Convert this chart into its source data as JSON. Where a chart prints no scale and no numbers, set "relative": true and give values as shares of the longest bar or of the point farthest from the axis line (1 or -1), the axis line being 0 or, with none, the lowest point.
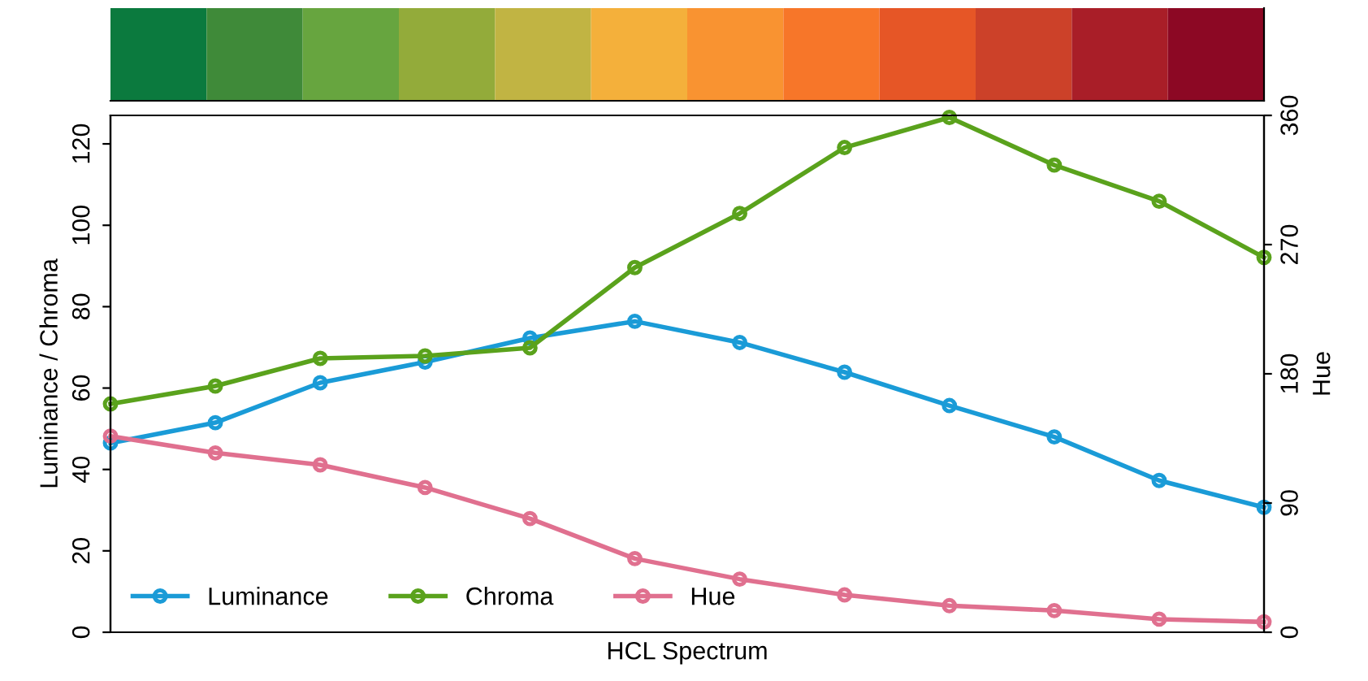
{
  "chart_data": [
    {
      "type": "bar",
      "relative": true,
      "categories": [
        null,
        null,
        null,
        null,
        null,
        null,
        null,
        null,
        null,
        null,
        null,
        null
      ],
      "values": [
        1,
        1,
        1,
        1,
        1,
        1,
        1,
        1,
        1,
        1,
        1,
        1
      ],
      "colors": [
        "#0b7a3e",
        "#3f8a39",
        "#67a53f",
        "#93ab3a",
        "#c1b443",
        "#f4b03b",
        "#f99331",
        "#f77629",
        "#e65626",
        "#cc4129",
        "#a91e28",
        "#8c0824"
      ]
    },
    {
      "type": "line",
      "xlabel": "HCL Spectrum",
      "ylabel": "Luminance / Chroma",
      "y2label": "Hue",
      "categories": [
        null,
        null,
        null,
        null,
        null,
        null,
        null,
        null,
        null,
        null,
        null,
        null
      ],
      "ylim": [
        0,
        127
      ],
      "yticks": [
        0,
        20,
        40,
        60,
        80,
        100,
        120
      ],
      "y2lim": [
        0,
        360
      ],
      "y2ticks": [
        0,
        90,
        180,
        270,
        360
      ],
      "marker": "circle",
      "line_style": "solid",
      "legend": "bottom left",
      "grid": false,
      "series": [
        {
          "name": "Luminance",
          "color": "#1a9bd7",
          "values": [
            46.5,
            51.5,
            61.3,
            66.4,
            72.3,
            76.4,
            71.2,
            63.9,
            55.7,
            48,
            37.3,
            30.7
          ]
        },
        {
          "name": "Chroma",
          "color": "#5aa21c",
          "values": [
            56.1,
            60.5,
            67.3,
            67.9,
            69.9,
            89.6,
            102.9,
            119.1,
            126.5,
            114.8,
            105.9,
            92.1
          ]
        },
        {
          "name": "Hue",
          "color": "#e0708f",
          "axis": "y2",
          "values": [
            136.6,
            124.9,
            116.6,
            100.8,
            79.2,
            51.3,
            37,
            26,
            18.5,
            15.1,
            9.1,
            7.2
          ]
        }
      ]
    }
  ]
}
